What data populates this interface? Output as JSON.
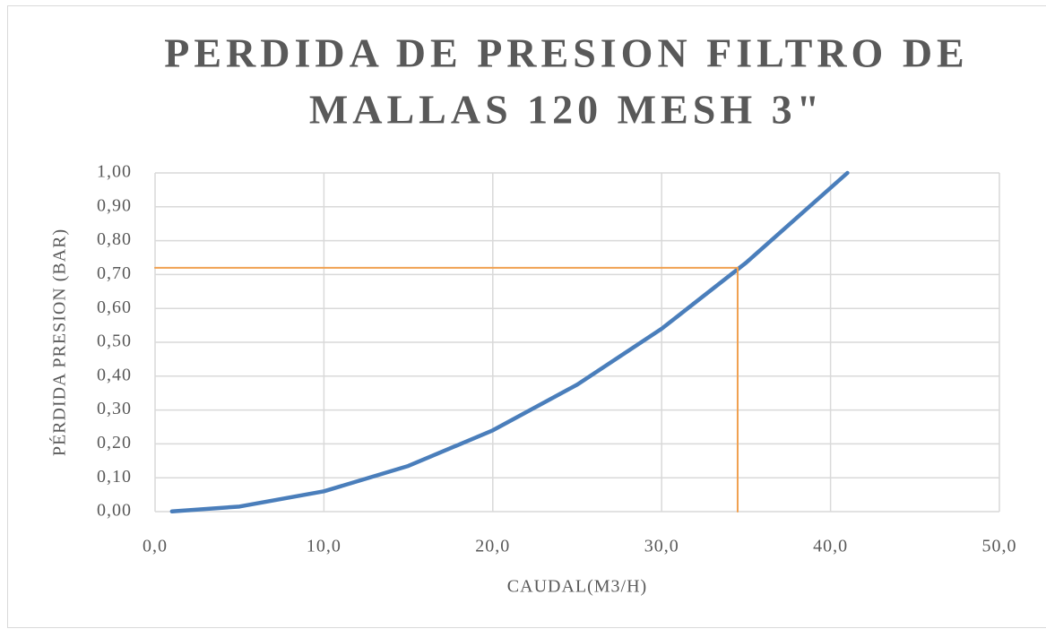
{
  "chart_data": {
    "type": "line",
    "title": [
      "PERDIDA DE PRESION FILTRO DE",
      "MALLAS 120 MESH 3\""
    ],
    "xlabel": "CAUDAL(M3/H)",
    "ylabel": "PÉRDIDA PRESION (BAR)",
    "series": [
      {
        "color": "#4a7ebb",
        "x": [
          1,
          5,
          10,
          15,
          20,
          25,
          30,
          35,
          41
        ],
        "values": [
          0.0006,
          0.015,
          0.06,
          0.135,
          0.24,
          0.375,
          0.54,
          0.735,
          1.0
        ]
      },
      {
        "color": "#f0a050",
        "x": [
          0,
          34.5,
          34.5
        ],
        "values": [
          0.72,
          0.72,
          0
        ]
      }
    ],
    "xlim": [
      0,
      50
    ],
    "xticks": [
      {
        "value": 0,
        "label": "0,0"
      },
      {
        "value": 10,
        "label": "10,0"
      },
      {
        "value": 20,
        "label": "20,0"
      },
      {
        "value": 30,
        "label": "30,0"
      },
      {
        "value": 40,
        "label": "40,0"
      },
      {
        "value": 50,
        "label": "50,0"
      }
    ],
    "ylim": [
      0,
      1
    ],
    "yticks": [
      {
        "value": 0,
        "label": "0,00"
      },
      {
        "value": 0.1,
        "label": "0,10"
      },
      {
        "value": 0.2,
        "label": "0,20"
      },
      {
        "value": 0.3,
        "label": "0,30"
      },
      {
        "value": 0.4,
        "label": "0,40"
      },
      {
        "value": 0.5,
        "label": "0,50"
      },
      {
        "value": 0.6,
        "label": "0,60"
      },
      {
        "value": 0.7,
        "label": "0,70"
      },
      {
        "value": 0.8,
        "label": "0,80"
      },
      {
        "value": 0.9,
        "label": "0,90"
      },
      {
        "value": 1,
        "label": "1,00"
      }
    ],
    "grid": true
  }
}
